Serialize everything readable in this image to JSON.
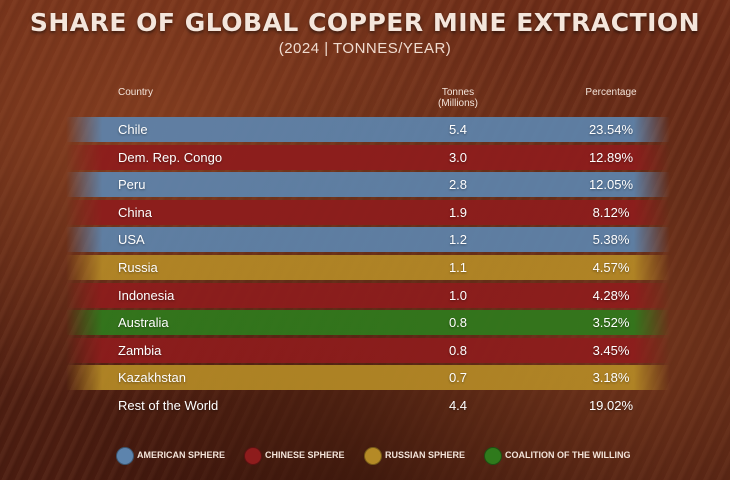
{
  "title": "SHARE OF GLOBAL COPPER MINE EXTRACTION",
  "subtitle": "(2024 | TONNES/YEAR)",
  "colors": {
    "american": "#5d84ad",
    "chinese": "#8e1c1c",
    "russian": "#b58a26",
    "coalition": "#2f7a1c"
  },
  "chart_data": {
    "type": "table",
    "columns": {
      "country": "Country",
      "tonnes_line1": "Tonnes",
      "tonnes_line2": "(Millions)",
      "percentage": "Percentage"
    },
    "rows": [
      {
        "country": "Chile",
        "tonnes": "5.4",
        "percentage": "23.54%",
        "sphere": "american"
      },
      {
        "country": "Dem. Rep. Congo",
        "tonnes": "3.0",
        "percentage": "12.89%",
        "sphere": "chinese"
      },
      {
        "country": "Peru",
        "tonnes": "2.8",
        "percentage": "12.05%",
        "sphere": "american"
      },
      {
        "country": "China",
        "tonnes": "1.9",
        "percentage": "8.12%",
        "sphere": "chinese"
      },
      {
        "country": "USA",
        "tonnes": "1.2",
        "percentage": "5.38%",
        "sphere": "american"
      },
      {
        "country": "Russia",
        "tonnes": "1.1",
        "percentage": "4.57%",
        "sphere": "russian"
      },
      {
        "country": "Indonesia",
        "tonnes": "1.0",
        "percentage": "4.28%",
        "sphere": "chinese"
      },
      {
        "country": "Australia",
        "tonnes": "0.8",
        "percentage": "3.52%",
        "sphere": "coalition"
      },
      {
        "country": "Zambia",
        "tonnes": "0.8",
        "percentage": "3.45%",
        "sphere": "chinese"
      },
      {
        "country": "Kazakhstan",
        "tonnes": "0.7",
        "percentage": "3.18%",
        "sphere": "russian"
      },
      {
        "country": "Rest of the World",
        "tonnes": "4.4",
        "percentage": "19.02%",
        "sphere": "none"
      }
    ]
  },
  "legend": [
    {
      "label": "AMERICAN SPHERE",
      "sphere": "american"
    },
    {
      "label": "CHINESE SPHERE",
      "sphere": "chinese"
    },
    {
      "label": "RUSSIAN SPHERE",
      "sphere": "russian"
    },
    {
      "label": "COALITION OF THE WILLING",
      "sphere": "coalition"
    }
  ]
}
